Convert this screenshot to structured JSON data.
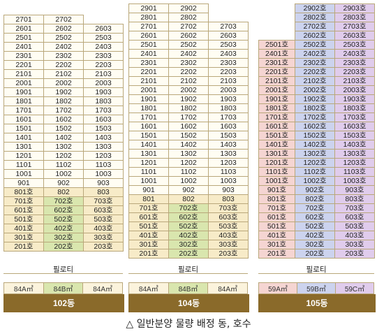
{
  "buildings": [
    {
      "name": "102동",
      "piloti": "필로티",
      "types": [
        "84A㎡",
        "84B㎡",
        "84A㎡"
      ],
      "rows": [
        {
          "c": [
            "2701",
            "2702",
            ""
          ]
        },
        {
          "c": [
            "2601",
            "2602",
            "2603"
          ]
        },
        {
          "c": [
            "2501",
            "2502",
            "2503"
          ]
        },
        {
          "c": [
            "2401",
            "2402",
            "2403"
          ]
        },
        {
          "c": [
            "2301",
            "2302",
            "2303"
          ]
        },
        {
          "c": [
            "2201",
            "2202",
            "2203"
          ]
        },
        {
          "c": [
            "2101",
            "2102",
            "2103"
          ]
        },
        {
          "c": [
            "2001",
            "2002",
            "2003"
          ]
        },
        {
          "c": [
            "1901",
            "1902",
            "1903"
          ]
        },
        {
          "c": [
            "1801",
            "1802",
            "1803"
          ]
        },
        {
          "c": [
            "1701",
            "1702",
            "1703"
          ]
        },
        {
          "c": [
            "1601",
            "1602",
            "1603"
          ]
        },
        {
          "c": [
            "1501",
            "1502",
            "1503"
          ]
        },
        {
          "c": [
            "1401",
            "1402",
            "1403"
          ]
        },
        {
          "c": [
            "1301",
            "1302",
            "1303"
          ]
        },
        {
          "c": [
            "1201",
            "1202",
            "1203"
          ]
        },
        {
          "c": [
            "1101",
            "1102",
            "1103"
          ]
        },
        {
          "c": [
            "1001",
            "1002",
            "1003"
          ]
        },
        {
          "c": [
            "901",
            "902",
            "903"
          ]
        },
        {
          "c": [
            "801호",
            "802",
            "803"
          ]
        },
        {
          "c": [
            "701호",
            "702호",
            "703호"
          ]
        },
        {
          "c": [
            "601호",
            "602호",
            "603호"
          ]
        },
        {
          "c": [
            "501호",
            "502호",
            "503호"
          ]
        },
        {
          "c": [
            "401호",
            "402호",
            "403호"
          ]
        },
        {
          "c": [
            "301호",
            "302호",
            "303호"
          ]
        },
        {
          "c": [
            "201호",
            "202호",
            "203호"
          ]
        }
      ]
    },
    {
      "name": "104동",
      "piloti": "필로티",
      "types": [
        "84A㎡",
        "84B㎡",
        "84A㎡"
      ],
      "rows": [
        {
          "c": [
            "2901",
            "2902",
            ""
          ]
        },
        {
          "c": [
            "2801",
            "2802",
            ""
          ]
        },
        {
          "c": [
            "2701",
            "2702",
            "2703"
          ]
        },
        {
          "c": [
            "2601",
            "2602",
            "2603"
          ]
        },
        {
          "c": [
            "2501",
            "2502",
            "2503"
          ]
        },
        {
          "c": [
            "2401",
            "2402",
            "2403"
          ]
        },
        {
          "c": [
            "2301",
            "2302",
            "2303"
          ]
        },
        {
          "c": [
            "2201",
            "2202",
            "2203"
          ]
        },
        {
          "c": [
            "2101",
            "2102",
            "2103"
          ]
        },
        {
          "c": [
            "2001",
            "2002",
            "2003"
          ]
        },
        {
          "c": [
            "1901",
            "1902",
            "1903"
          ]
        },
        {
          "c": [
            "1801",
            "1802",
            "1803"
          ]
        },
        {
          "c": [
            "1701",
            "1702",
            "1703"
          ]
        },
        {
          "c": [
            "1601",
            "1602",
            "1603"
          ]
        },
        {
          "c": [
            "1501",
            "1502",
            "1503"
          ]
        },
        {
          "c": [
            "1401",
            "1402",
            "1403"
          ]
        },
        {
          "c": [
            "1301",
            "1302",
            "1303"
          ]
        },
        {
          "c": [
            "1201",
            "1202",
            "1203"
          ]
        },
        {
          "c": [
            "1101",
            "1102",
            "1103"
          ]
        },
        {
          "c": [
            "1001",
            "1002",
            "1003"
          ]
        },
        {
          "c": [
            "901",
            "902",
            "903"
          ]
        },
        {
          "c": [
            "801",
            "802",
            "803"
          ]
        },
        {
          "c": [
            "701호",
            "702호",
            "703호"
          ]
        },
        {
          "c": [
            "601호",
            "602호",
            "603호"
          ]
        },
        {
          "c": [
            "501호",
            "502호",
            "503호"
          ]
        },
        {
          "c": [
            "401호",
            "402호",
            "403호"
          ]
        },
        {
          "c": [
            "301호",
            "302호",
            "303호"
          ]
        },
        {
          "c": [
            "201호",
            "202호",
            "203호"
          ]
        }
      ]
    },
    {
      "name": "105동",
      "piloti": "필로티",
      "types": [
        "59A㎡",
        "59B㎡",
        "59C㎡"
      ],
      "rows": [
        {
          "c": [
            "",
            "2902호",
            "2903호"
          ]
        },
        {
          "c": [
            "",
            "2802호",
            "2803호"
          ]
        },
        {
          "c": [
            "",
            "2702호",
            "2703호"
          ]
        },
        {
          "c": [
            "",
            "2602호",
            "2603호"
          ]
        },
        {
          "c": [
            "2501호",
            "2502호",
            "2503호"
          ]
        },
        {
          "c": [
            "2401호",
            "2402호",
            "2403호"
          ]
        },
        {
          "c": [
            "2301호",
            "2302호",
            "2303호"
          ]
        },
        {
          "c": [
            "2201호",
            "2202호",
            "2203호"
          ]
        },
        {
          "c": [
            "2101호",
            "2102호",
            "2103호"
          ]
        },
        {
          "c": [
            "2001호",
            "2002호",
            "2003호"
          ]
        },
        {
          "c": [
            "1901호",
            "1902호",
            "1903호"
          ]
        },
        {
          "c": [
            "1801호",
            "1802호",
            "1803호"
          ]
        },
        {
          "c": [
            "1701호",
            "1702호",
            "1703호"
          ]
        },
        {
          "c": [
            "1601호",
            "1602호",
            "1603호"
          ]
        },
        {
          "c": [
            "1501호",
            "1502호",
            "1503호"
          ]
        },
        {
          "c": [
            "1401호",
            "1402호",
            "1403호"
          ]
        },
        {
          "c": [
            "1301호",
            "1302호",
            "1303호"
          ]
        },
        {
          "c": [
            "1201호",
            "1202호",
            "1203호"
          ]
        },
        {
          "c": [
            "1101호",
            "1102호",
            "1103호"
          ]
        },
        {
          "c": [
            "1001호",
            "1002호",
            "1003호"
          ]
        },
        {
          "c": [
            "901호",
            "902호",
            "903호"
          ]
        },
        {
          "c": [
            "801호",
            "802호",
            "803호"
          ]
        },
        {
          "c": [
            "701호",
            "702호",
            "703호"
          ]
        },
        {
          "c": [
            "601호",
            "602호",
            "603호"
          ]
        },
        {
          "c": [
            "501호",
            "502호",
            "503호"
          ]
        },
        {
          "c": [
            "401호",
            "402호",
            "403호"
          ]
        },
        {
          "c": [
            "301호",
            "302호",
            "303호"
          ]
        },
        {
          "c": [
            "201호",
            "202호",
            "203호"
          ]
        }
      ]
    }
  ],
  "caption": "△ 일반분양 물량 배정 동, 호수",
  "colors": {
    "border": "#b9a77a",
    "cell_plain": "#fffdf3",
    "cell_amber": "#f7ebc8",
    "cell_green": "#d9e6ae",
    "cell_pink": "#f5d5d2",
    "cell_blue": "#ccd3ee",
    "cell_purple": "#e0ccec",
    "bar": "#8a6a2a"
  }
}
